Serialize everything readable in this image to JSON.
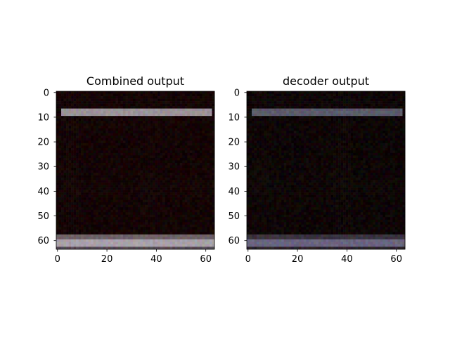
{
  "chart_data": [
    {
      "type": "heatmap",
      "title": "Combined output",
      "xlabel": "",
      "ylabel": "",
      "image_size": [
        64,
        64
      ],
      "xlim": [
        -0.5,
        63.5
      ],
      "ylim": [
        63.5,
        -0.5
      ],
      "xticks": [
        0,
        20,
        40,
        60
      ],
      "yticks": [
        0,
        10,
        20,
        30,
        40,
        50,
        60
      ],
      "grid": false,
      "background_color": "#140404",
      "bands": [
        {
          "rows": [
            7,
            9
          ],
          "cols": [
            2,
            62
          ],
          "color": "#9a9292"
        },
        {
          "rows": [
            58,
            59
          ],
          "cols": [
            0,
            63
          ],
          "color": "#6e6262"
        },
        {
          "rows": [
            60,
            62
          ],
          "cols": [
            0,
            63
          ],
          "color": "#a8a0a4"
        },
        {
          "rows": [
            63,
            63
          ],
          "cols": [
            0,
            63
          ],
          "color": "#5a4e52"
        }
      ]
    },
    {
      "type": "heatmap",
      "title": "decoder output",
      "xlabel": "",
      "ylabel": "",
      "image_size": [
        64,
        64
      ],
      "xlim": [
        -0.5,
        63.5
      ],
      "ylim": [
        63.5,
        -0.5
      ],
      "xticks": [
        0,
        20,
        40,
        60
      ],
      "yticks": [
        0,
        10,
        20,
        30,
        40,
        50,
        60
      ],
      "grid": false,
      "background_color": "#0e0606",
      "bands": [
        {
          "rows": [
            7,
            9
          ],
          "cols": [
            2,
            62
          ],
          "color": "#5a5a64"
        },
        {
          "rows": [
            58,
            59
          ],
          "cols": [
            0,
            63
          ],
          "color": "#3a3238"
        },
        {
          "rows": [
            60,
            62
          ],
          "cols": [
            0,
            63
          ],
          "color": "#6a6478"
        },
        {
          "rows": [
            63,
            63
          ],
          "cols": [
            0,
            63
          ],
          "color": "#2e262a"
        }
      ]
    }
  ]
}
